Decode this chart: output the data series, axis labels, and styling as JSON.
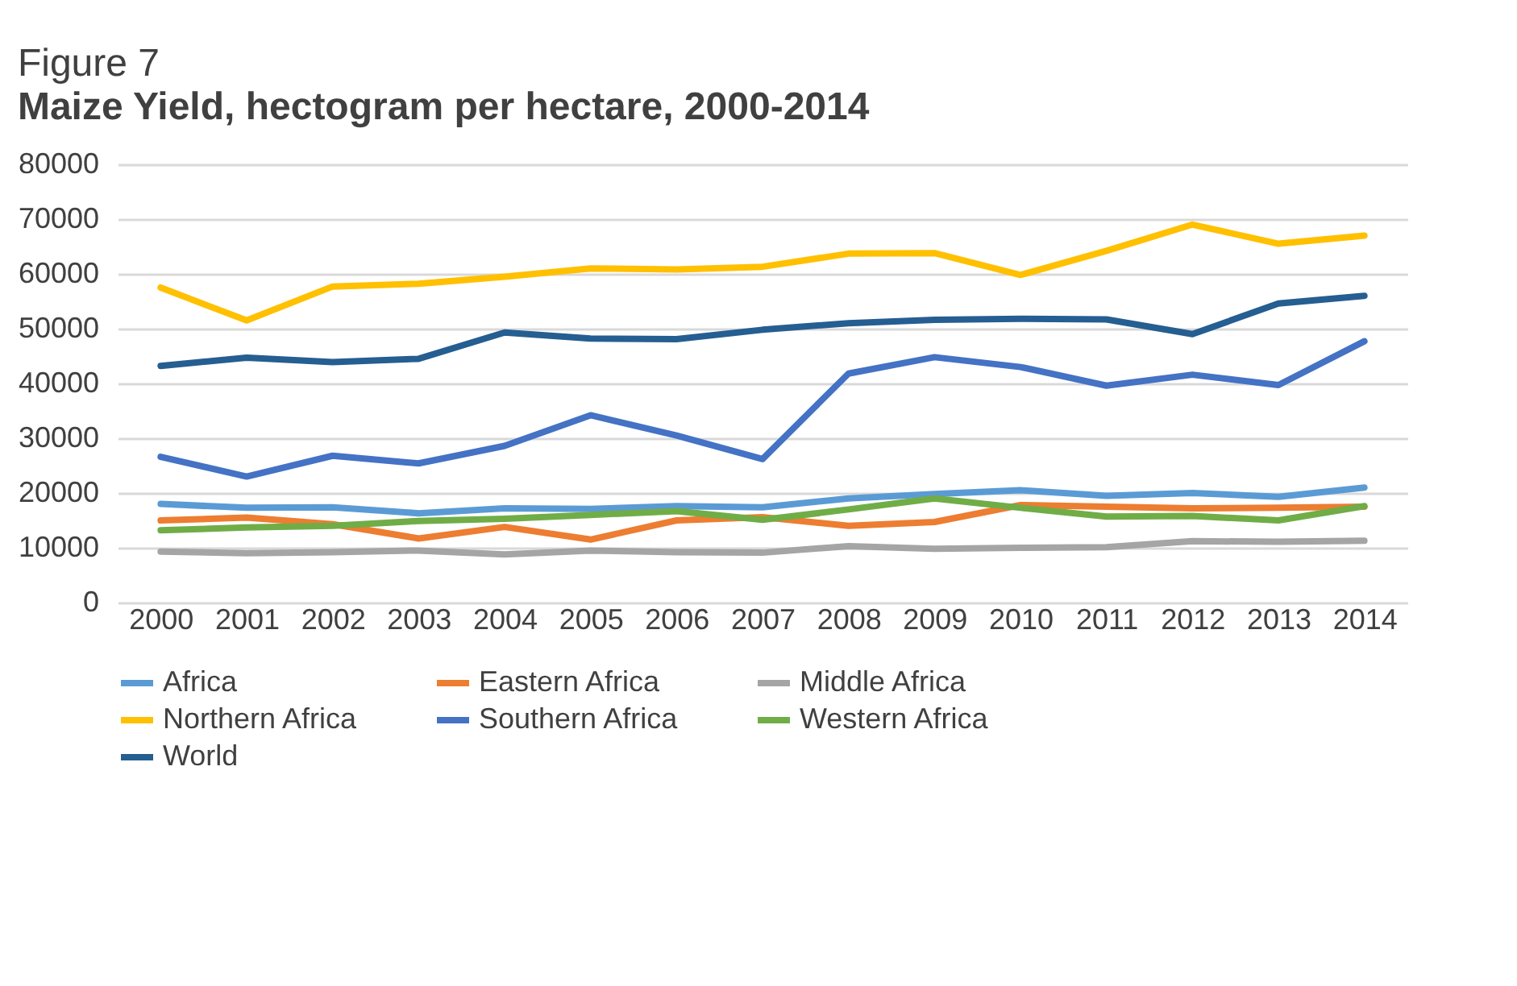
{
  "chart_data": {
    "type": "line",
    "title": "Figure 7",
    "subtitle": "Maize Yield, hectogram per hectare, 2000-2014",
    "categories": [
      "2000",
      "2001",
      "2002",
      "2003",
      "2004",
      "2005",
      "2006",
      "2007",
      "2008",
      "2009",
      "2010",
      "2011",
      "2012",
      "2013",
      "2014"
    ],
    "ylim": [
      0,
      80000
    ],
    "yticks": [
      0,
      10000,
      20000,
      30000,
      40000,
      50000,
      60000,
      70000,
      80000
    ],
    "grid": "y",
    "legend": "bottom",
    "marker": "none",
    "line_style": "solid",
    "series": [
      {
        "name": "Africa",
        "color": "#5b9bd5",
        "values": [
          18000,
          17300,
          17400,
          16300,
          17200,
          17100,
          17600,
          17400,
          19000,
          19800,
          20500,
          19500,
          20000,
          19300,
          21000
        ]
      },
      {
        "name": "Eastern Africa",
        "color": "#ed7d31",
        "values": [
          15000,
          15500,
          14300,
          11700,
          13800,
          11500,
          15000,
          15600,
          14000,
          14700,
          17800,
          17500,
          17200,
          17300,
          17500
        ]
      },
      {
        "name": "Middle Africa",
        "color": "#a5a5a5",
        "values": [
          9300,
          9000,
          9200,
          9500,
          8800,
          9500,
          9200,
          9100,
          10300,
          9800,
          10000,
          10100,
          11200,
          11100,
          11300
        ]
      },
      {
        "name": "Northern Africa",
        "color": "#ffc000",
        "values": [
          57500,
          51500,
          57700,
          58200,
          59500,
          61000,
          60800,
          61300,
          63700,
          63800,
          59800,
          64200,
          69000,
          65500,
          67000
        ]
      },
      {
        "name": "Southern Africa",
        "color": "#4472c4",
        "values": [
          26600,
          23000,
          26800,
          25400,
          28600,
          34200,
          30500,
          26200,
          41800,
          44800,
          43000,
          39600,
          41600,
          39700,
          47700
        ]
      },
      {
        "name": "Western Africa",
        "color": "#70ad47",
        "values": [
          13200,
          13700,
          14000,
          14900,
          15300,
          16000,
          16700,
          15100,
          17000,
          19000,
          17300,
          15700,
          15800,
          15000,
          17600
        ]
      },
      {
        "name": "World",
        "color": "#255e91",
        "values": [
          43200,
          44700,
          43900,
          44500,
          49300,
          48200,
          48100,
          49800,
          51000,
          51600,
          51800,
          51700,
          49000,
          54600,
          56000
        ]
      }
    ]
  }
}
